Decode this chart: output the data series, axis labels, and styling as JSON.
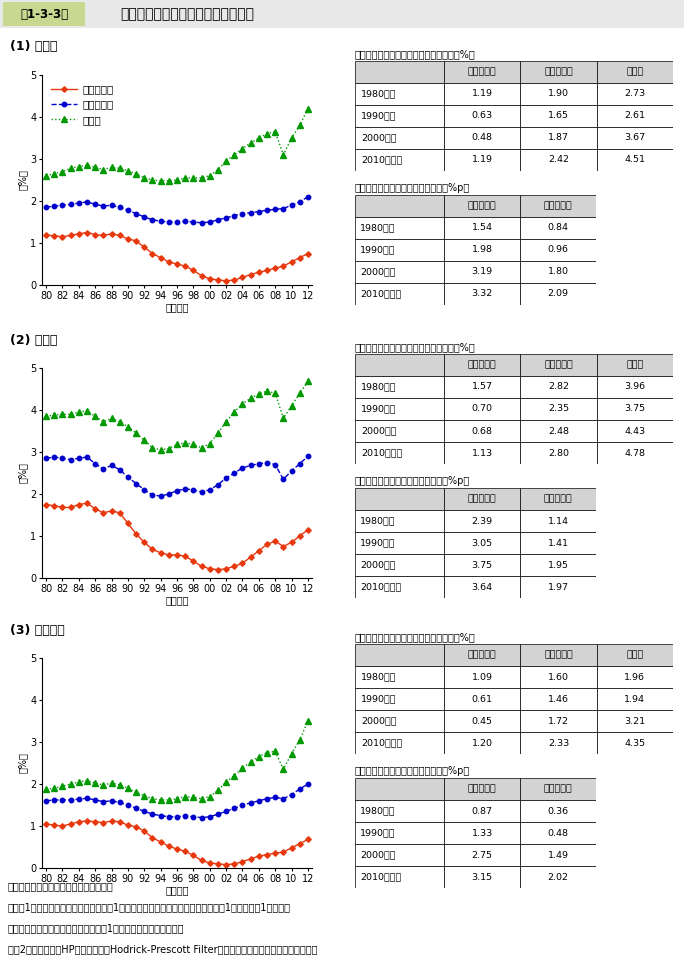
{
  "title_box_label": "第1-3-3図",
  "subtitle": "企業規模別に見た売上高経常利益率",
  "sections": [
    "(1) 全産業",
    "(2) 製造業",
    "(3) 非製造業"
  ],
  "year_labels": [
    "80",
    "82",
    "84",
    "86",
    "88",
    "90",
    "92",
    "94",
    "96",
    "98",
    "00",
    "02",
    "04",
    "06",
    "08",
    "10",
    "12"
  ],
  "panel1": {
    "small": [
      1.19,
      1.17,
      1.15,
      1.18,
      1.22,
      1.25,
      1.2,
      1.18,
      1.22,
      1.18,
      1.1,
      1.05,
      0.9,
      0.75,
      0.65,
      0.55,
      0.5,
      0.45,
      0.35,
      0.22,
      0.15,
      0.12,
      0.1,
      0.12,
      0.18,
      0.25,
      0.3,
      0.35,
      0.4,
      0.45,
      0.55,
      0.65,
      0.75
    ],
    "medium": [
      1.85,
      1.88,
      1.9,
      1.92,
      1.95,
      1.98,
      1.92,
      1.88,
      1.9,
      1.85,
      1.78,
      1.7,
      1.62,
      1.55,
      1.52,
      1.5,
      1.5,
      1.52,
      1.5,
      1.48,
      1.5,
      1.55,
      1.6,
      1.65,
      1.7,
      1.72,
      1.75,
      1.78,
      1.8,
      1.82,
      1.9,
      1.98,
      2.1
    ],
    "large": [
      2.6,
      2.65,
      2.7,
      2.78,
      2.82,
      2.85,
      2.8,
      2.75,
      2.8,
      2.78,
      2.72,
      2.65,
      2.55,
      2.5,
      2.48,
      2.48,
      2.5,
      2.55,
      2.55,
      2.55,
      2.6,
      2.75,
      2.95,
      3.1,
      3.25,
      3.38,
      3.5,
      3.6,
      3.65,
      3.1,
      3.5,
      3.8,
      4.2
    ],
    "avg_rows": [
      "1980年代",
      "1990年代",
      "2000年代",
      "2010年以降"
    ],
    "avg_small": [
      1.19,
      0.63,
      0.48,
      1.19
    ],
    "avg_medium": [
      1.9,
      1.65,
      1.87,
      2.42
    ],
    "avg_large": [
      2.73,
      2.61,
      3.67,
      4.51
    ],
    "diff_rows": [
      "1980年代",
      "1990年代",
      "2000年代",
      "2010年以降"
    ],
    "diff_small": [
      1.54,
      1.98,
      3.19,
      3.32
    ],
    "diff_medium": [
      0.84,
      0.96,
      1.8,
      2.09
    ]
  },
  "panel2": {
    "small": [
      1.75,
      1.72,
      1.68,
      1.68,
      1.75,
      1.78,
      1.65,
      1.55,
      1.6,
      1.55,
      1.3,
      1.05,
      0.85,
      0.68,
      0.6,
      0.55,
      0.55,
      0.52,
      0.4,
      0.28,
      0.22,
      0.2,
      0.22,
      0.28,
      0.35,
      0.5,
      0.65,
      0.8,
      0.88,
      0.75,
      0.85,
      1.0,
      1.15
    ],
    "medium": [
      2.85,
      2.88,
      2.85,
      2.82,
      2.85,
      2.88,
      2.72,
      2.6,
      2.68,
      2.58,
      2.4,
      2.25,
      2.1,
      1.98,
      1.95,
      2.0,
      2.08,
      2.12,
      2.1,
      2.05,
      2.1,
      2.22,
      2.38,
      2.5,
      2.62,
      2.68,
      2.72,
      2.75,
      2.7,
      2.35,
      2.55,
      2.72,
      2.9
    ],
    "large": [
      3.85,
      3.88,
      3.9,
      3.9,
      3.95,
      3.98,
      3.85,
      3.72,
      3.8,
      3.72,
      3.6,
      3.45,
      3.28,
      3.1,
      3.05,
      3.08,
      3.18,
      3.22,
      3.18,
      3.1,
      3.2,
      3.45,
      3.72,
      3.95,
      4.15,
      4.28,
      4.38,
      4.45,
      4.4,
      3.8,
      4.1,
      4.4,
      4.68
    ],
    "avg_rows": [
      "1980年代",
      "1990年代",
      "2000年代",
      "2010年以降"
    ],
    "avg_small": [
      1.57,
      0.7,
      0.68,
      1.13
    ],
    "avg_medium": [
      2.82,
      2.35,
      2.48,
      2.8
    ],
    "avg_large": [
      3.96,
      3.75,
      4.43,
      4.78
    ],
    "diff_rows": [
      "1980年代",
      "1990年代",
      "2000年代",
      "2010年以降"
    ],
    "diff_small": [
      2.39,
      3.05,
      3.75,
      3.64
    ],
    "diff_medium": [
      1.14,
      1.41,
      1.95,
      1.97
    ]
  },
  "panel3": {
    "small": [
      1.05,
      1.02,
      1.0,
      1.05,
      1.1,
      1.12,
      1.1,
      1.08,
      1.12,
      1.1,
      1.02,
      0.98,
      0.88,
      0.72,
      0.62,
      0.52,
      0.45,
      0.4,
      0.3,
      0.18,
      0.12,
      0.1,
      0.08,
      0.1,
      0.15,
      0.22,
      0.28,
      0.32,
      0.35,
      0.38,
      0.48,
      0.58,
      0.68
    ],
    "medium": [
      1.6,
      1.62,
      1.62,
      1.62,
      1.64,
      1.66,
      1.62,
      1.58,
      1.6,
      1.56,
      1.5,
      1.42,
      1.35,
      1.28,
      1.25,
      1.22,
      1.22,
      1.24,
      1.22,
      1.2,
      1.22,
      1.28,
      1.35,
      1.42,
      1.5,
      1.55,
      1.6,
      1.65,
      1.68,
      1.65,
      1.75,
      1.88,
      2.0
    ],
    "large": [
      1.88,
      1.9,
      1.95,
      2.0,
      2.05,
      2.08,
      2.02,
      1.98,
      2.02,
      1.98,
      1.9,
      1.8,
      1.72,
      1.65,
      1.62,
      1.62,
      1.65,
      1.7,
      1.68,
      1.65,
      1.7,
      1.85,
      2.05,
      2.2,
      2.38,
      2.52,
      2.65,
      2.75,
      2.78,
      2.35,
      2.72,
      3.05,
      3.5
    ],
    "avg_rows": [
      "1980年代",
      "1990年代",
      "2000年代",
      "2010年以降"
    ],
    "avg_small": [
      1.09,
      0.61,
      0.45,
      1.2
    ],
    "avg_medium": [
      1.6,
      1.46,
      1.72,
      2.33
    ],
    "avg_large": [
      1.96,
      1.94,
      3.21,
      4.35
    ],
    "diff_rows": [
      "1980年代",
      "1990年代",
      "2000年代",
      "2010年以降"
    ],
    "diff_small": [
      0.87,
      1.33,
      2.75,
      3.15
    ],
    "diff_medium": [
      0.36,
      0.48,
      1.49,
      2.02
    ]
  },
  "color_small": "#e8380d",
  "color_medium": "#0000cc",
  "color_large": "#009900",
  "legend_labels": [
    "小規模企業",
    "中規模企業",
    "大企業"
  ],
  "ylabel": "（%）",
  "xlabel": "（年度）",
  "ylim": [
    0,
    5
  ],
  "yticks": [
    0,
    1,
    2,
    3,
    4,
    5
  ],
  "table_title1": "年代別に見た売上高経常利益率の平均（%）",
  "table_title2": "大企業との売上高経常利益率の差（%p）",
  "col_headers4": [
    "",
    "小規模企業",
    "中規模企業",
    "大企業"
  ],
  "col_headers3": [
    "",
    "小規模企業",
    "中規模企業"
  ],
  "note1": "資料：財務省「法人企業統計調査年報」",
  "note2": "（注）1．ここでいう大企業とは資本金1億円以上の企業、中規模企業とは資本金1千万円以上1億円未満",
  "note3": "　　　の企業、小規模企業とは資本金1千万円未満の企業をいう。",
  "note4": "　　2．各系列は、HPフィルター（Hodrick-Prescott Filter）により平滑化した値を用いている。",
  "title_bg": "#b8cc88"
}
